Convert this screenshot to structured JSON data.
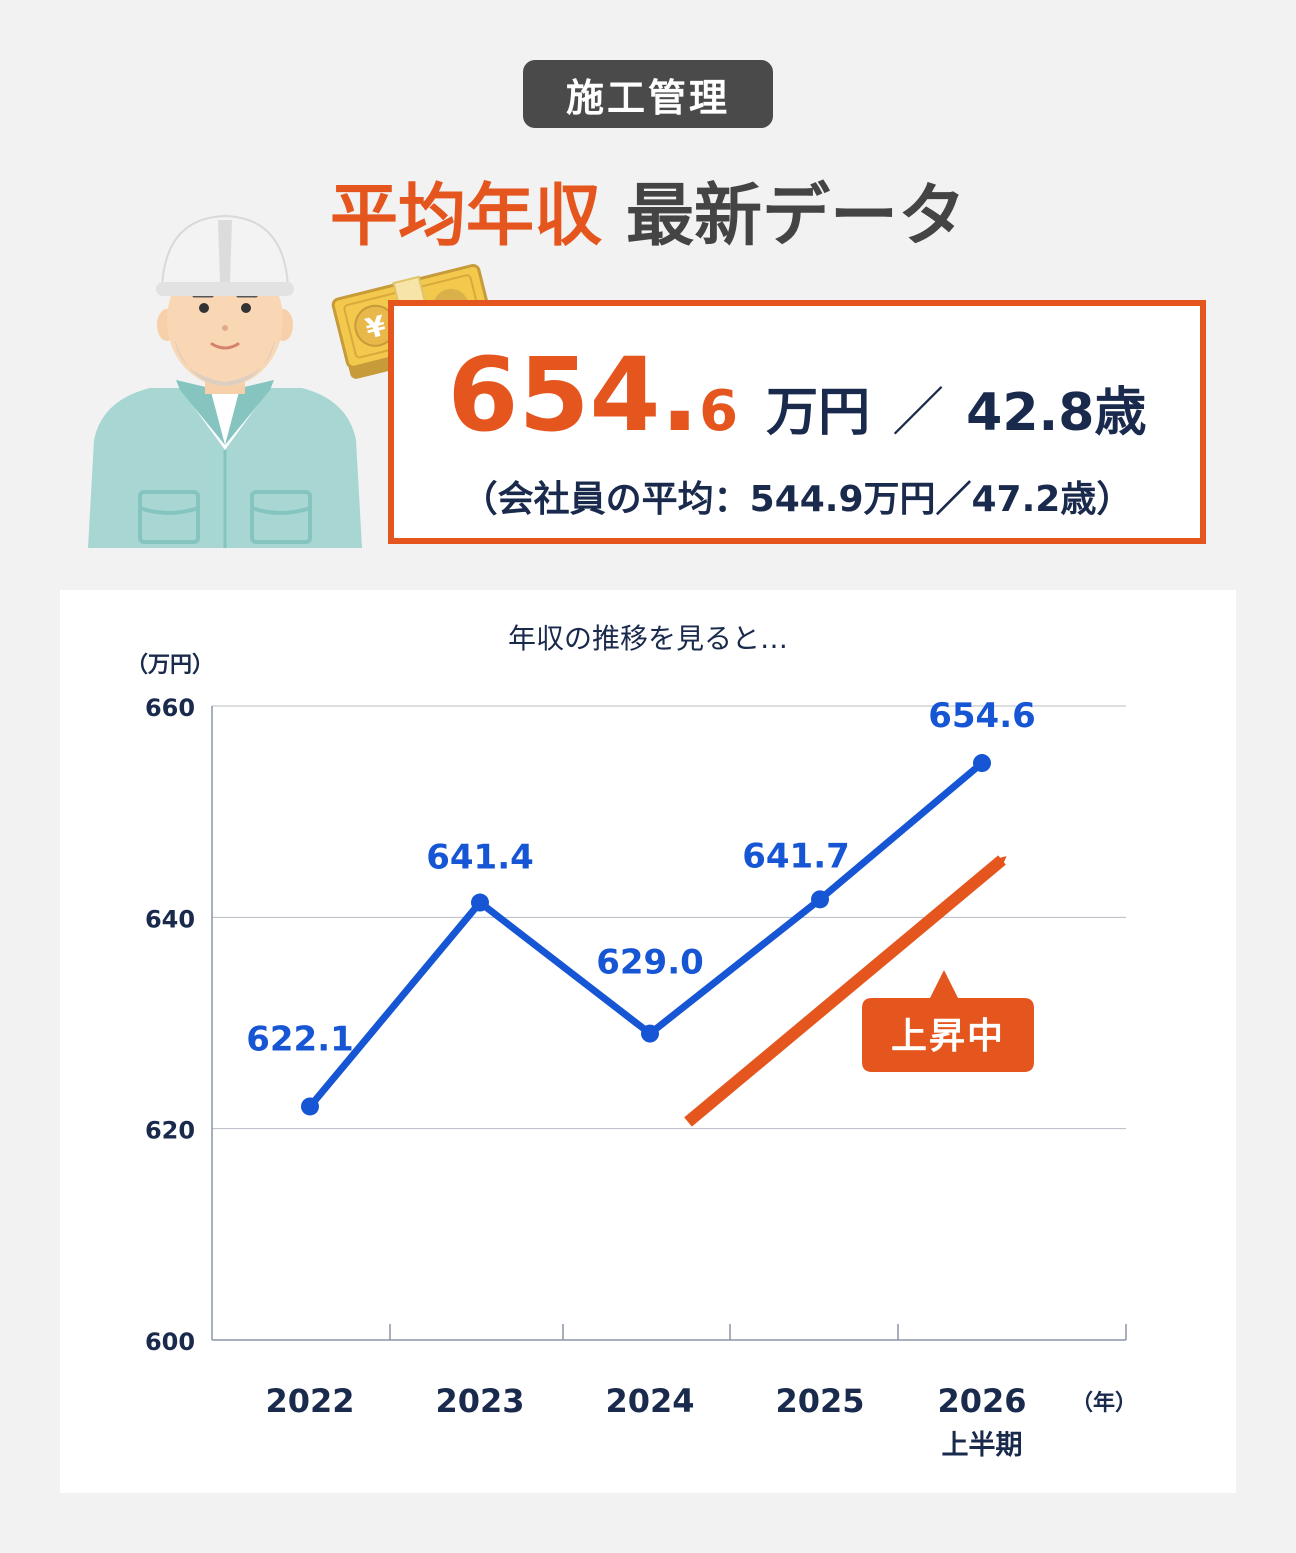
{
  "badge": "施工管理",
  "headline": {
    "part1": "平均年収",
    "part2": "最新データ"
  },
  "stat": {
    "salary_int": "654.",
    "salary_dec": "6",
    "salary_unit": "万円",
    "separator": "／",
    "age": "42.8歳",
    "comparison": "（会社員の平均：544.9万円／47.2歳）"
  },
  "colors": {
    "accent": "#e5561f",
    "series": "#1656d4",
    "text_dark": "#1a2a4d",
    "badge_bg": "#4a4a4a",
    "background": "#f2f2f2"
  },
  "icons": [
    "construction-worker-illustration",
    "money-bundle-icon",
    "yen-icon",
    "trend-arrow-icon"
  ],
  "chart_data": {
    "type": "line",
    "title": "年収の推移を見ると…",
    "ylabel": "（万円）",
    "xlabel": "（年）",
    "ylim": [
      600,
      660
    ],
    "yticks": [
      600,
      620,
      640,
      660
    ],
    "categories": [
      "2022",
      "2023",
      "2024",
      "2025",
      "2026"
    ],
    "category_sublabels": [
      "",
      "",
      "",
      "",
      "上半期"
    ],
    "series": [
      {
        "values": [
          622.1,
          641.4,
          629.0,
          641.7,
          654.6
        ]
      }
    ],
    "data_labels": [
      "622.1",
      "641.4",
      "629.0",
      "641.7",
      "654.6"
    ],
    "annotation": "上昇中",
    "grid": true
  }
}
